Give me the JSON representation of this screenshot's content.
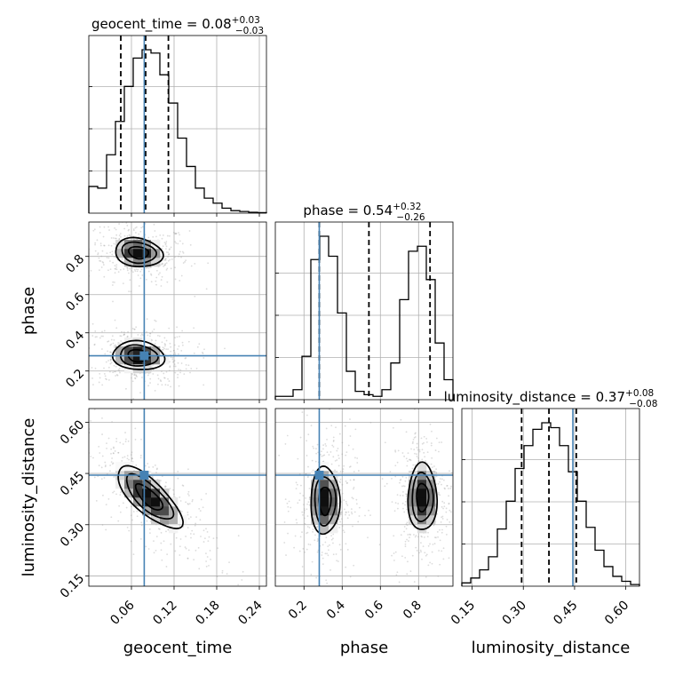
{
  "chart_data": {
    "type": "corner",
    "parameters": [
      "geocent_time",
      "phase",
      "luminosity_distance"
    ],
    "axis_labels": [
      "geocent_time",
      "phase",
      "luminosity_distance"
    ],
    "ranges": [
      [
        0.0,
        0.25
      ],
      [
        0.05,
        0.98
      ],
      [
        0.12,
        0.64
      ]
    ],
    "ticks": [
      [
        "0.06",
        "0.12",
        "0.18",
        "0.24"
      ],
      [
        "0.2",
        "0.4",
        "0.6",
        "0.8"
      ],
      [
        "0.15",
        "0.30",
        "0.45",
        "0.60"
      ]
    ],
    "tick_values": [
      [
        0.06,
        0.12,
        0.18,
        0.24
      ],
      [
        0.2,
        0.4,
        0.6,
        0.8
      ],
      [
        0.15,
        0.3,
        0.45,
        0.6
      ]
    ],
    "truths": [
      0.078,
      0.28,
      0.445
    ],
    "truth_color": "#4682b4",
    "titles": [
      {
        "text": "geocent_time = 0.08",
        "sup": "+0.03",
        "sub": "−0.03"
      },
      {
        "text": "phase = 0.54",
        "sup": "+0.32",
        "sub": "−0.26"
      },
      {
        "text": "luminosity_distance = 0.37",
        "sup": "+0.08",
        "sub": "−0.08"
      }
    ],
    "quantiles": [
      [
        0.045,
        0.08,
        0.112
      ],
      [
        0.28,
        0.54,
        0.86
      ],
      [
        0.295,
        0.375,
        0.455
      ]
    ],
    "histograms": [
      {
        "bin_edges": [
          0.0,
          0.0125,
          0.025,
          0.0375,
          0.05,
          0.0625,
          0.075,
          0.0875,
          0.1,
          0.1125,
          0.125,
          0.1375,
          0.15,
          0.1625,
          0.175,
          0.1875,
          0.2,
          0.2125,
          0.225,
          0.2375,
          0.25
        ],
        "counts": [
          0.16,
          0.15,
          0.35,
          0.55,
          0.76,
          0.93,
          0.98,
          0.96,
          0.83,
          0.66,
          0.45,
          0.28,
          0.15,
          0.09,
          0.06,
          0.03,
          0.015,
          0.01,
          0.005,
          0.003
        ]
      },
      {
        "bin_edges": [
          0.05,
          0.0965,
          0.143,
          0.1895,
          0.236,
          0.2825,
          0.329,
          0.3755,
          0.422,
          0.4685,
          0.515,
          0.5615,
          0.608,
          0.6545,
          0.701,
          0.7475,
          0.794,
          0.8405,
          0.887,
          0.9335,
          0.98
        ],
        "counts": [
          0.02,
          0.02,
          0.06,
          0.26,
          0.84,
          0.98,
          0.86,
          0.52,
          0.17,
          0.05,
          0.03,
          0.02,
          0.06,
          0.22,
          0.6,
          0.89,
          0.92,
          0.72,
          0.34,
          0.12
        ]
      },
      {
        "bin_edges": [
          0.12,
          0.146,
          0.172,
          0.198,
          0.224,
          0.25,
          0.276,
          0.302,
          0.328,
          0.354,
          0.38,
          0.406,
          0.432,
          0.458,
          0.484,
          0.51,
          0.536,
          0.562,
          0.588,
          0.614,
          0.64
        ],
        "counts": [
          0.02,
          0.05,
          0.1,
          0.18,
          0.35,
          0.52,
          0.72,
          0.86,
          0.96,
          1.0,
          0.97,
          0.86,
          0.7,
          0.52,
          0.36,
          0.22,
          0.12,
          0.06,
          0.03,
          0.01
        ]
      }
    ],
    "joint": [
      {
        "x": 0,
        "y": 1,
        "modes": [
          {
            "mx": 0.07,
            "my": 0.82,
            "sx": 0.022,
            "sy": 0.05,
            "rho": -0.15
          },
          {
            "mx": 0.07,
            "my": 0.28,
            "sx": 0.024,
            "sy": 0.05,
            "rho": -0.1
          }
        ]
      },
      {
        "x": 0,
        "y": 2,
        "modes": [
          {
            "mx": 0.085,
            "my": 0.38,
            "sx": 0.03,
            "sy": 0.06,
            "rho": -0.75
          }
        ]
      },
      {
        "x": 1,
        "y": 2,
        "modes": [
          {
            "mx": 0.31,
            "my": 0.37,
            "sx": 0.05,
            "sy": 0.065,
            "rho": 0.0
          },
          {
            "mx": 0.82,
            "my": 0.38,
            "sx": 0.05,
            "sy": 0.065,
            "rho": 0.0
          }
        ]
      }
    ],
    "grid": true
  }
}
